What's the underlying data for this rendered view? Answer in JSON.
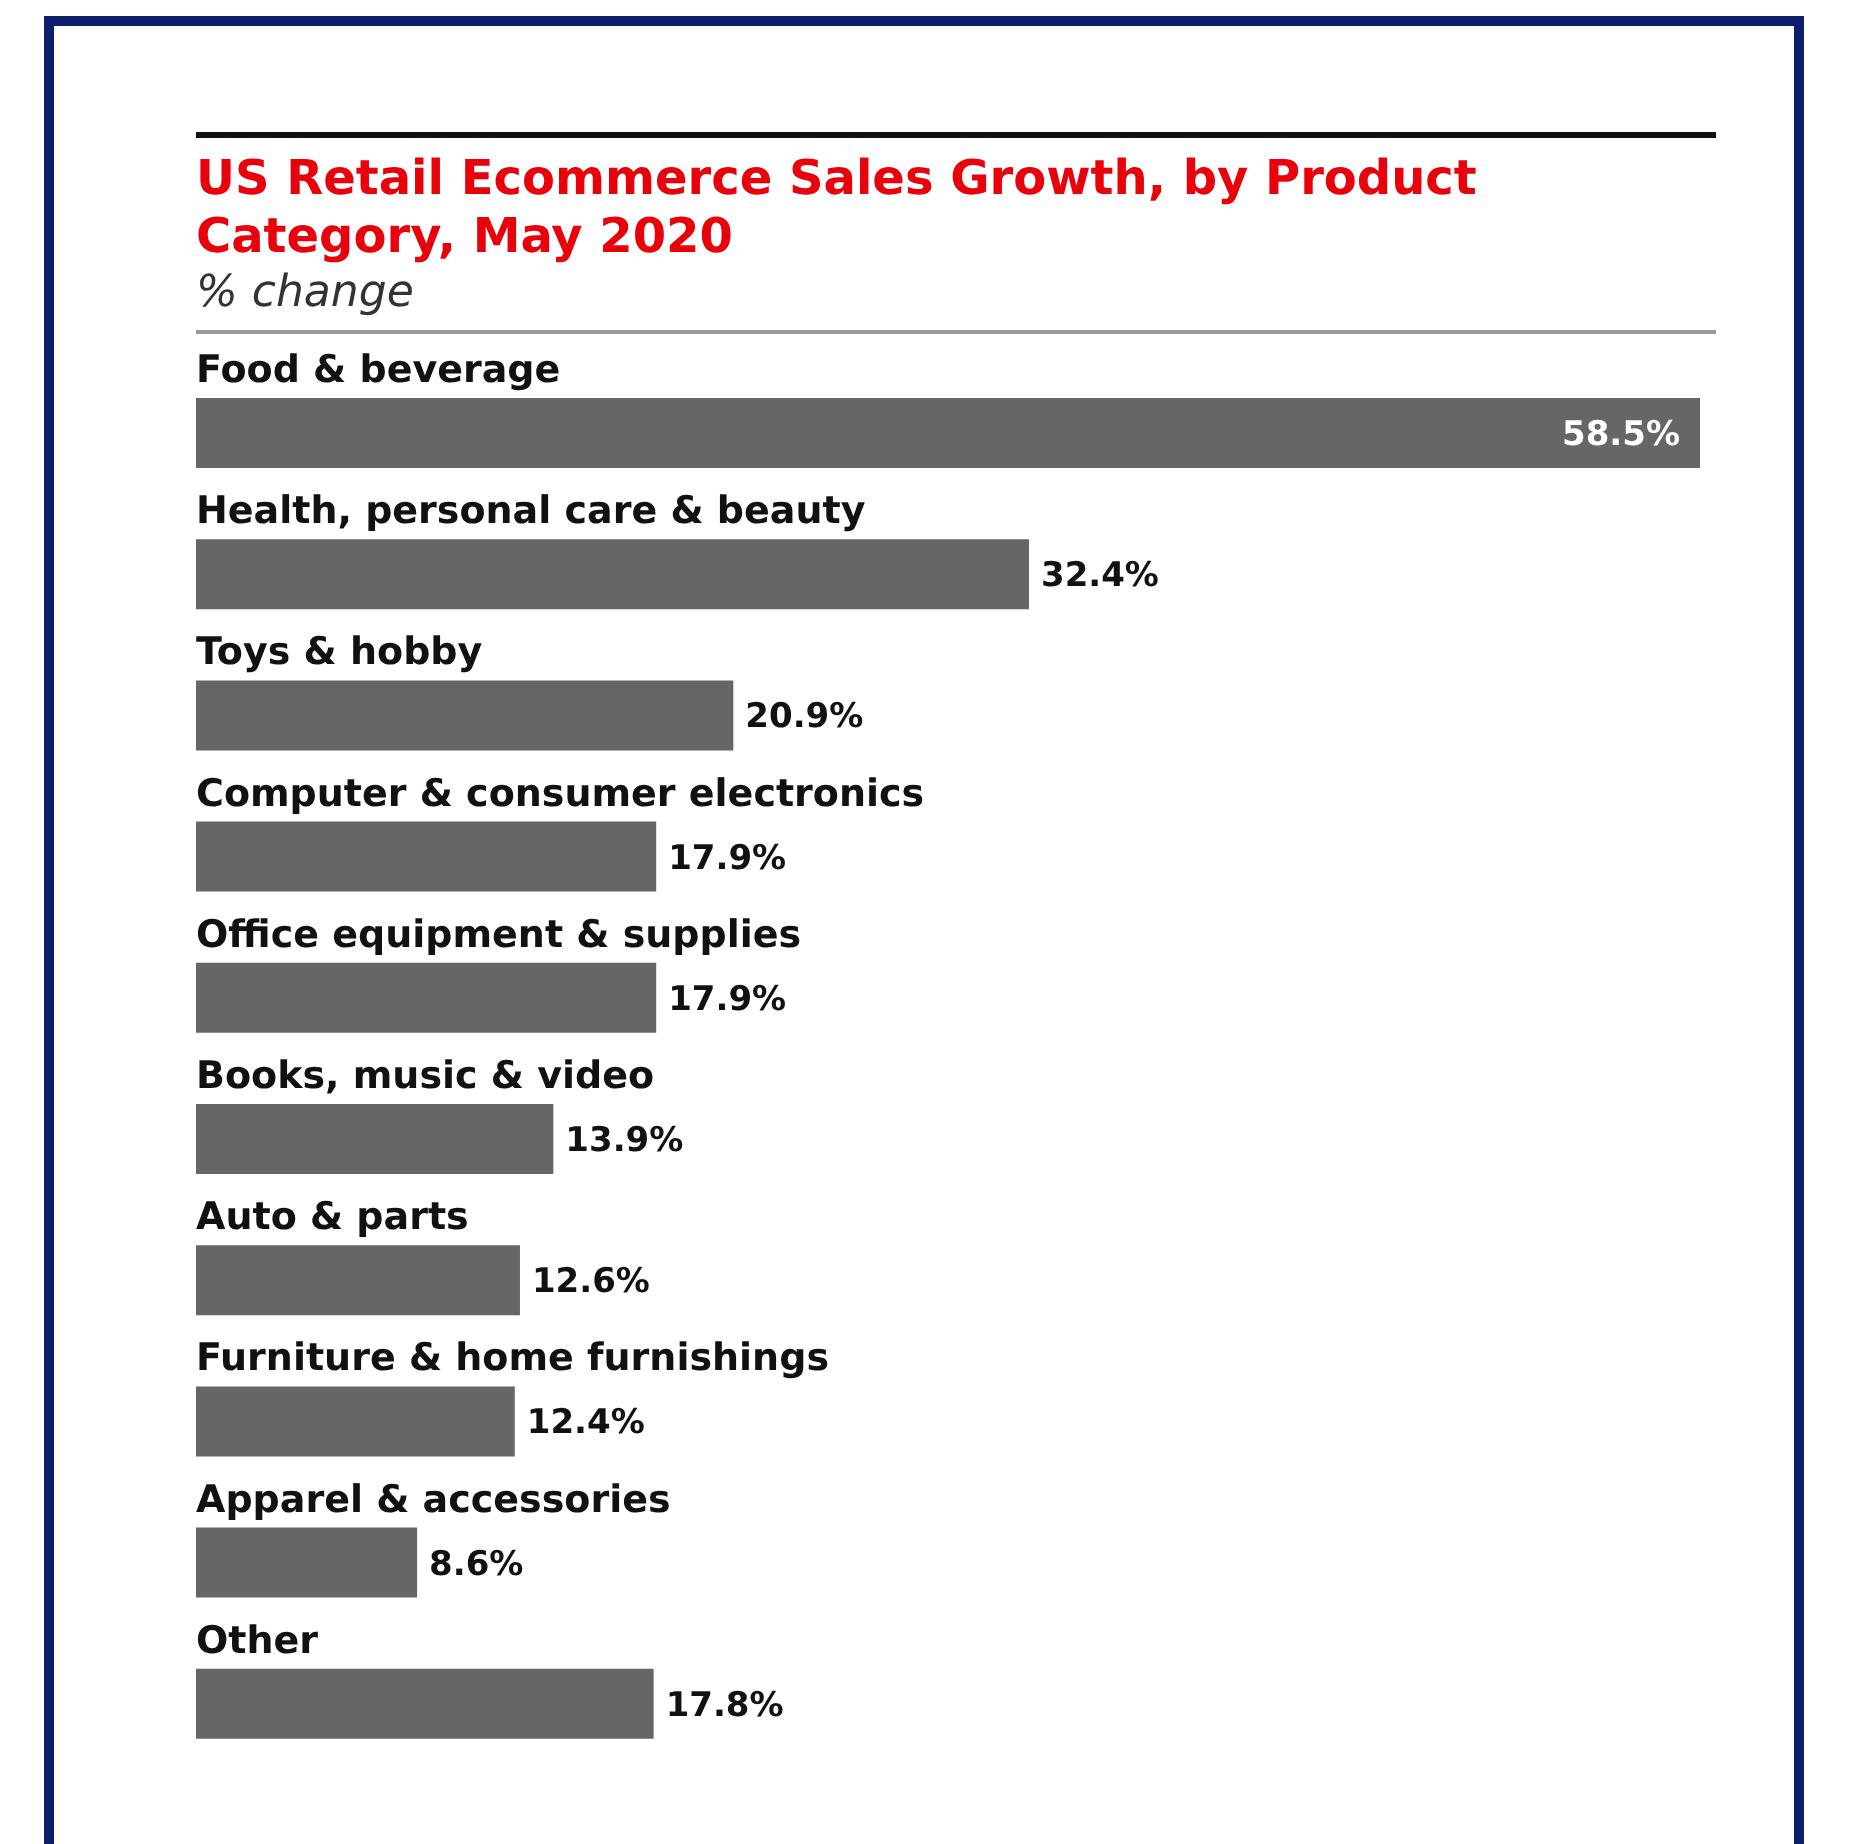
{
  "chart_data": {
    "type": "bar",
    "orientation": "horizontal",
    "title": "US Retail Ecommerce Sales Growth, by Product Category, May 2020",
    "subtitle": "% change",
    "categories": [
      "Food & beverage",
      "Health, personal care & beauty",
      "Toys & hobby",
      "Computer & consumer electronics",
      "Office equipment & supplies",
      "Books, music & video",
      "Auto & parts",
      "Furniture & home furnishings",
      "Apparel & accessories",
      "Other"
    ],
    "values": [
      58.5,
      32.4,
      20.9,
      17.9,
      17.9,
      13.9,
      12.6,
      12.4,
      8.6,
      17.8
    ],
    "value_labels": [
      "58.5%",
      "32.4%",
      "20.9%",
      "17.9%",
      "17.9%",
      "13.9%",
      "12.6%",
      "12.4%",
      "8.6%",
      "17.8%"
    ],
    "color": "#666666",
    "grid": false,
    "legend": false
  }
}
